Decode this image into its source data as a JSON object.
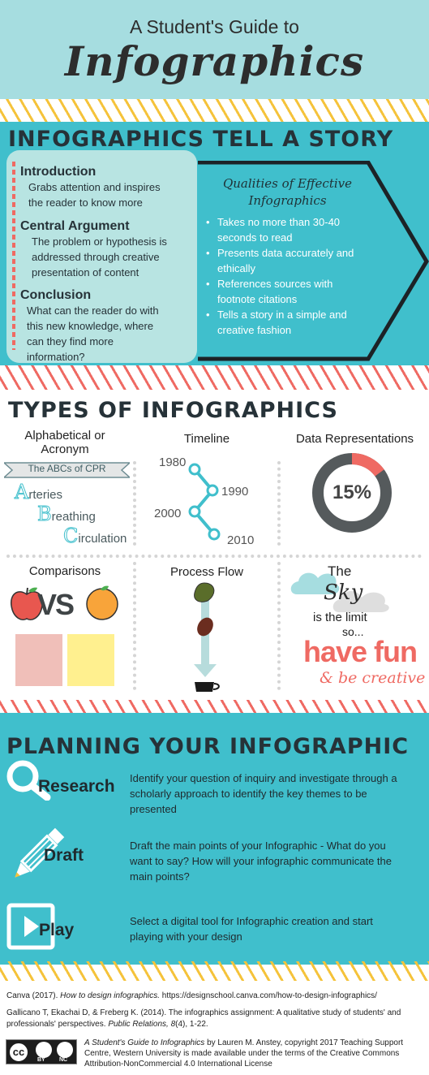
{
  "header": {
    "title_line1": "A Student's Guide to",
    "title_line2": "Infographics"
  },
  "colors": {
    "teal": "#40bfcc",
    "light_teal": "#a6dde0",
    "yellow": "#f5c33b",
    "coral": "#ef6a63",
    "dark": "#263238"
  },
  "story": {
    "title": "INFOGRAPHICS TELL A STORY",
    "parts": [
      {
        "heading": "Introduction",
        "text_lines": [
          "Grabs attention and inspires",
          "the reader to know more"
        ]
      },
      {
        "heading": "Central Argument",
        "text_lines": [
          "The problem or hypothesis is",
          "addressed through creative",
          "presentation of content"
        ]
      },
      {
        "heading": "Conclusion",
        "text_lines": [
          "What can the reader do with",
          "this new knowledge, where",
          "can they find more",
          "information?"
        ]
      }
    ],
    "qualities_title_lines": [
      "Qualities of Effective",
      "Infographics"
    ],
    "qualities": [
      [
        "Takes no more than 30-40",
        "seconds to read"
      ],
      [
        "Presents data accurately and",
        "ethically"
      ],
      [
        "References sources with",
        "footnote citations"
      ],
      [
        "Tells a story in a simple and",
        "creative fashion"
      ]
    ]
  },
  "types": {
    "title": "TYPES OF INFOGRAPHICS",
    "alphabetical": {
      "heading_lines": [
        "Alphabetical or",
        "Acronym"
      ],
      "banner": "The ABCs of CPR",
      "words": [
        {
          "letter": "A",
          "rest": "rteries"
        },
        {
          "letter": "B",
          "rest": "reathing"
        },
        {
          "letter": "C",
          "rest": "irculation"
        }
      ]
    },
    "timeline": {
      "heading": "Timeline",
      "years": [
        "1980",
        "1990",
        "2000",
        "2010"
      ]
    },
    "data": {
      "heading": "Data Representations",
      "percent_label": "15%",
      "percent_value": 15
    },
    "comparisons": {
      "heading": "Comparisons",
      "vs": "VS",
      "swatches": [
        "#f0bfb9",
        "#fff08f"
      ]
    },
    "process": {
      "heading": "Process Flow"
    },
    "sky": {
      "the": "The",
      "sky": "Sky",
      "limit": "is the limit",
      "so": "so...",
      "fun": "have fun",
      "creative": "& be creative"
    }
  },
  "planning": {
    "title": "PLANNING YOUR INFOGRAPHIC",
    "steps": [
      {
        "label": "Research",
        "icon": "magnifier-icon",
        "lines": [
          "Identify your question of inquiry and investigate through a",
          "scholarly approach to identify the key themes to be",
          "presented"
        ]
      },
      {
        "label": "Draft",
        "icon": "pencil-icon",
        "lines": [
          "Draft the main points of your Infographic - What do you",
          "want to say? How will your infographic communicate the",
          "main points?"
        ]
      },
      {
        "label": "Play",
        "icon": "play-icon",
        "lines": [
          "Select a digital tool for Infographic creation and start",
          "playing with your design"
        ]
      }
    ]
  },
  "footer": {
    "ref1_author": "Canva (2017).",
    "ref1_title": "How to design infographics.",
    "ref1_url": "https://designschool.canva.com/how-to-design-infographics/",
    "ref2_line1": "Gallicano T, Ekachai D, & Freberg K. (2014). The infographics assignment: A qualitative study of students' and",
    "ref2_line2_a": "professionals' perspectives.",
    "ref2_journal": "Public Relations,",
    "ref2_vol": "8",
    "ref2_rest": "(4), 1-22.",
    "license_title": "A Student's Guide to Infographics",
    "license_line1_rest": "by Lauren M. Anstey, copyright 2017 Teaching Support",
    "license_line2": "Centre, Western University is made available under the terms of the Creative Commons",
    "license_line3": "Attribution-NonCommercial 4.0 International License",
    "cc_label": "cc",
    "by_label": "BY",
    "nc_label": "NC"
  }
}
